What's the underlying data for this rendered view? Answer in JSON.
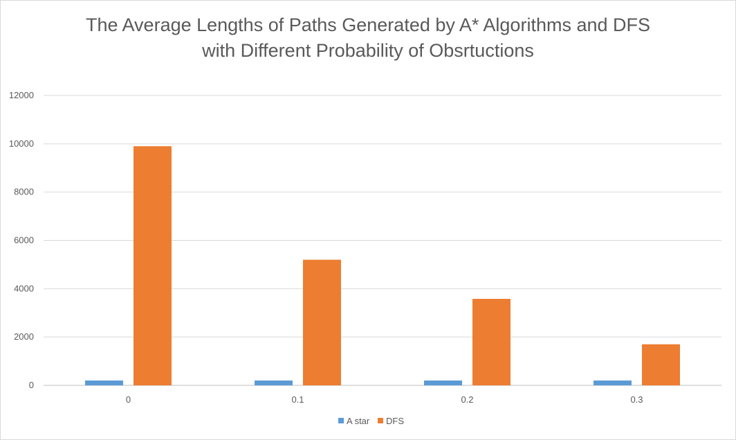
{
  "chart_data": {
    "type": "bar",
    "title_lines": [
      "The Average Lengths of Paths Generated by A* Algorithms and DFS",
      "with Different Probability of Obsrtuctions"
    ],
    "xlabel": "",
    "ylabel": "",
    "categories": [
      "0",
      "0.1",
      "0.2",
      "0.3"
    ],
    "series": [
      {
        "name": "A star",
        "color": "#5b9bd5",
        "values": [
          200,
          200,
          200,
          200
        ]
      },
      {
        "name": "DFS",
        "color": "#ed7d31",
        "values": [
          9900,
          5200,
          3580,
          1700
        ]
      }
    ],
    "ylim": [
      0,
      12000
    ],
    "yticks": [
      "0",
      "2000",
      "4000",
      "6000",
      "8000",
      "10000",
      "12000"
    ],
    "grid": true,
    "legend_position": "bottom"
  }
}
